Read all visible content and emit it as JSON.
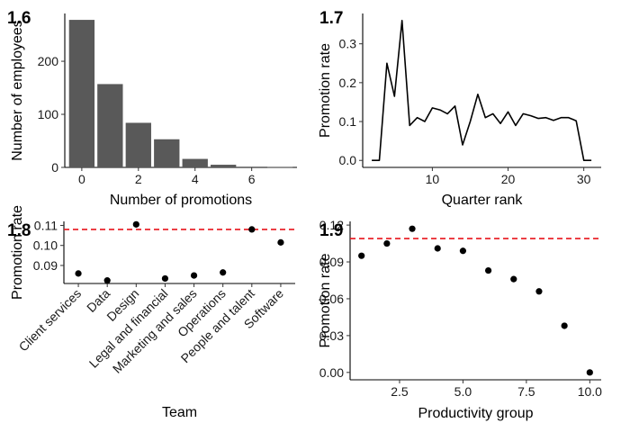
{
  "chart_data": [
    {
      "panel_tag": "1.6",
      "type": "bar",
      "xlabel": "Number of promotions",
      "ylabel": "Number of employees",
      "x": [
        0,
        1,
        2,
        3,
        4,
        5,
        7
      ],
      "values": [
        278,
        157,
        84,
        53,
        16,
        5,
        1
      ],
      "xlim": [
        -0.6,
        7.6
      ],
      "ylim": [
        0,
        290
      ],
      "xticks": [
        0,
        2,
        4,
        6
      ],
      "yticks": [
        0,
        100,
        200
      ],
      "grid": false,
      "color": "#595959"
    },
    {
      "panel_tag": "1.7",
      "type": "line",
      "xlabel": "Quarter rank",
      "ylabel": "Promotion rate",
      "x": [
        2,
        3,
        4,
        5,
        6,
        7,
        8,
        9,
        10,
        11,
        12,
        13,
        14,
        15,
        16,
        17,
        18,
        19,
        20,
        21,
        22,
        23,
        24,
        25,
        26,
        27,
        28,
        29,
        30,
        31
      ],
      "y": [
        0.0,
        0.0,
        0.25,
        0.165,
        0.36,
        0.09,
        0.11,
        0.1,
        0.135,
        0.13,
        0.12,
        0.14,
        0.04,
        0.1,
        0.17,
        0.11,
        0.12,
        0.095,
        0.125,
        0.09,
        0.12,
        0.115,
        0.108,
        0.11,
        0.103,
        0.11,
        0.11,
        0.102,
        0.0,
        0.0
      ],
      "xlim": [
        0.8,
        32.3
      ],
      "ylim": [
        -0.018,
        0.378
      ],
      "xticks": [
        10,
        20,
        30
      ],
      "yticks": [
        0.0,
        0.1,
        0.2,
        0.3
      ],
      "ytick_labels": [
        "0.0",
        "0.1",
        "0.2",
        "0.3"
      ],
      "grid": false
    },
    {
      "panel_tag": "1.8",
      "type": "scatter",
      "xlabel": "Team",
      "ylabel": "Promotion rate",
      "categories": [
        "Client services",
        "Data",
        "Design",
        "Legal and financial",
        "Marketing and sales",
        "Operations",
        "People and talent",
        "Software"
      ],
      "values": [
        0.086,
        0.0825,
        0.1105,
        0.0835,
        0.085,
        0.0865,
        0.108,
        0.1015
      ],
      "reference_line": 0.108,
      "reference_color": "#e8141b",
      "ylim": [
        0.081,
        0.112
      ],
      "yticks": [
        0.09,
        0.1,
        0.11
      ],
      "ytick_labels": [
        "0.09",
        "0.10",
        "0.11"
      ],
      "grid": false
    },
    {
      "panel_tag": "1.9",
      "type": "scatter",
      "xlabel": "Productivity group",
      "ylabel": "Promotion rate",
      "x": [
        1,
        2,
        3,
        4,
        5,
        6,
        7,
        8,
        9,
        10
      ],
      "y": [
        0.095,
        0.105,
        0.117,
        0.101,
        0.099,
        0.083,
        0.076,
        0.066,
        0.038,
        0.0
      ],
      "reference_line": 0.109,
      "reference_color": "#e8141b",
      "xlim": [
        0.55,
        10.45
      ],
      "ylim": [
        -0.006,
        0.123
      ],
      "xticks": [
        2.5,
        5.0,
        7.5,
        10.0
      ],
      "xtick_labels": [
        "2.5",
        "5.0",
        "7.5",
        "10.0"
      ],
      "yticks": [
        0.0,
        0.03,
        0.06,
        0.09,
        0.12
      ],
      "ytick_labels": [
        "0.00",
        "0.03",
        "0.06",
        "0.09",
        "0.12"
      ],
      "grid": false
    }
  ]
}
